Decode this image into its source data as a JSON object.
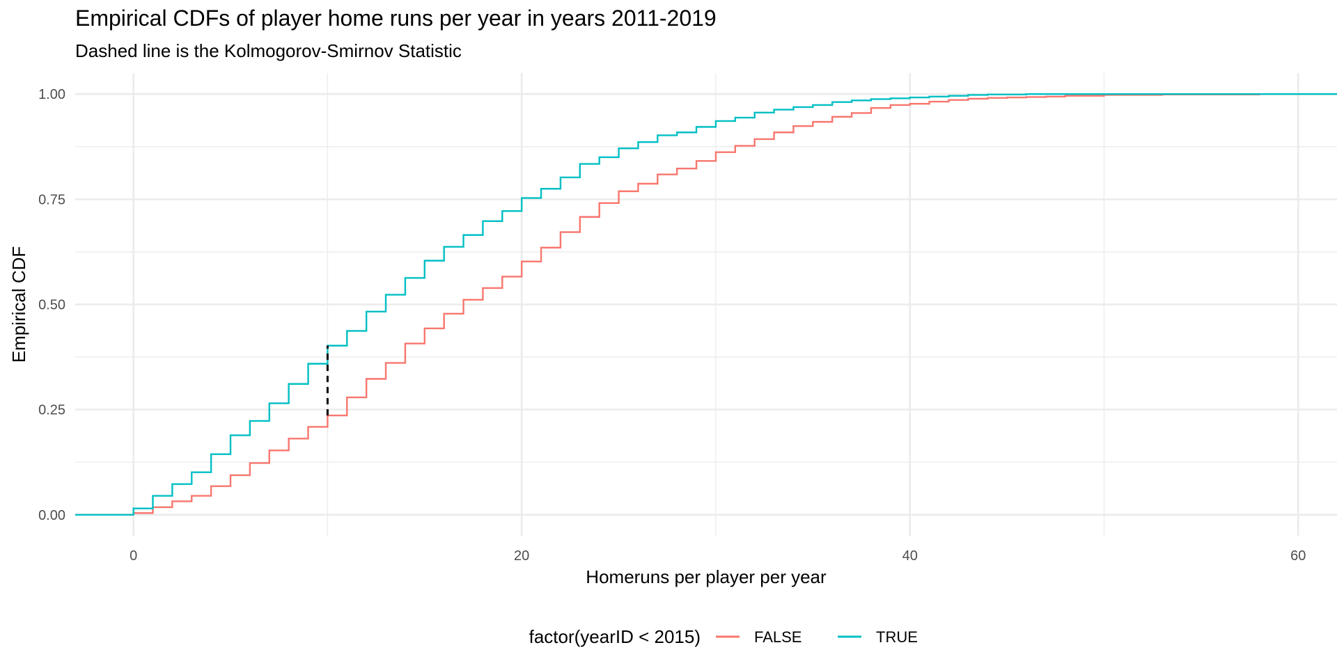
{
  "chart_data": {
    "type": "line",
    "step": true,
    "title": "Empirical CDFs of player home runs per year in years 2011-2019",
    "subtitle": "Dashed line is the Kolmogorov-Smirnov Statistic",
    "xlabel": "Homeruns per player per year",
    "ylabel": "Empirical CDF",
    "xlim": [
      -3,
      62
    ],
    "ylim": [
      -0.05,
      1.05
    ],
    "x_ticks": [
      0,
      20,
      40,
      60
    ],
    "x_tick_labels": [
      "0",
      "20",
      "40",
      "60"
    ],
    "y_ticks": [
      0,
      0.25,
      0.5,
      0.75,
      1
    ],
    "y_tick_labels": [
      "0.00",
      "0.25",
      "0.50",
      "0.75",
      "1.00"
    ],
    "grid": true,
    "legend": {
      "title": "factor(yearID < 2015)",
      "position": "bottom"
    },
    "series": [
      {
        "name": "FALSE",
        "color": "#F8766D",
        "x": [
          -3,
          0,
          1,
          2,
          3,
          4,
          5,
          6,
          7,
          8,
          9,
          10,
          11,
          12,
          13,
          14,
          15,
          16,
          17,
          18,
          19,
          20,
          21,
          22,
          23,
          24,
          25,
          26,
          27,
          28,
          29,
          30,
          31,
          32,
          33,
          34,
          35,
          36,
          37,
          38,
          39,
          40,
          41,
          42,
          43,
          44,
          45,
          46,
          47,
          48,
          50,
          53,
          58,
          62
        ],
        "y": [
          0,
          0.004,
          0.018,
          0.032,
          0.045,
          0.068,
          0.094,
          0.123,
          0.153,
          0.181,
          0.209,
          0.236,
          0.279,
          0.323,
          0.361,
          0.407,
          0.443,
          0.478,
          0.511,
          0.539,
          0.566,
          0.602,
          0.635,
          0.672,
          0.708,
          0.741,
          0.769,
          0.787,
          0.809,
          0.823,
          0.841,
          0.862,
          0.877,
          0.893,
          0.909,
          0.924,
          0.934,
          0.946,
          0.955,
          0.967,
          0.974,
          0.977,
          0.982,
          0.986,
          0.989,
          0.991,
          0.992,
          0.993,
          0.994,
          0.996,
          0.998,
          0.999,
          1.0,
          1.0
        ]
      },
      {
        "name": "TRUE",
        "color": "#00BFC4",
        "x": [
          -3,
          0,
          1,
          2,
          3,
          4,
          5,
          6,
          7,
          8,
          9,
          10,
          11,
          12,
          13,
          14,
          15,
          16,
          17,
          18,
          19,
          20,
          21,
          22,
          23,
          24,
          25,
          26,
          27,
          28,
          29,
          30,
          31,
          32,
          33,
          34,
          35,
          36,
          37,
          38,
          39,
          40,
          41,
          42,
          43,
          44,
          46,
          48,
          50,
          55,
          62
        ],
        "y": [
          0,
          0.015,
          0.045,
          0.073,
          0.101,
          0.144,
          0.189,
          0.223,
          0.265,
          0.311,
          0.359,
          0.402,
          0.437,
          0.483,
          0.523,
          0.563,
          0.604,
          0.637,
          0.665,
          0.698,
          0.722,
          0.753,
          0.775,
          0.802,
          0.834,
          0.85,
          0.871,
          0.886,
          0.902,
          0.909,
          0.922,
          0.936,
          0.944,
          0.956,
          0.963,
          0.969,
          0.974,
          0.981,
          0.985,
          0.988,
          0.99,
          0.992,
          0.994,
          0.996,
          0.998,
          0.999,
          1.0,
          1.0,
          1.0,
          1.0,
          1.0
        ]
      }
    ],
    "ks_line": {
      "x": 10,
      "y_from": 0.236,
      "y_to": 0.402,
      "color": "#000000"
    }
  }
}
